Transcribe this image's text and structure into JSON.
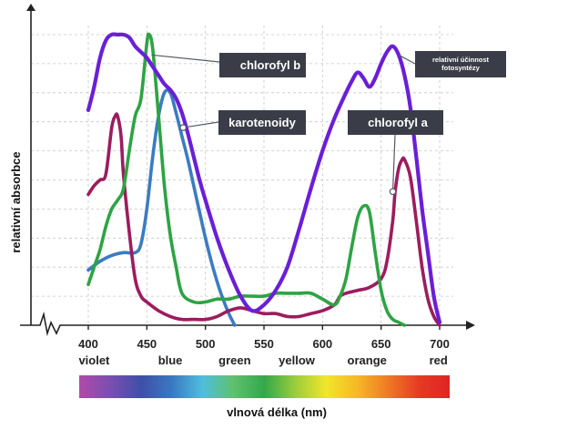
{
  "chart_data": {
    "type": "line",
    "title": "",
    "xlabel": "vlnová délka (nm)",
    "ylabel": "relativní absorbce",
    "xlim": [
      400,
      700
    ],
    "ylim": [
      0,
      1
    ],
    "grid": true,
    "ticks": [
      400,
      450,
      500,
      550,
      600,
      650,
      700
    ],
    "tick_labels": [
      "400",
      "450",
      "500",
      "550",
      "600",
      "650",
      "700"
    ],
    "color_bands": [
      {
        "label": "violet",
        "x": 405
      },
      {
        "label": "blue",
        "x": 470
      },
      {
        "label": "green",
        "x": 525
      },
      {
        "label": "yellow",
        "x": 578
      },
      {
        "label": "orange",
        "x": 638
      },
      {
        "label": "red",
        "x": 699
      }
    ],
    "spectrum_stops": [
      "#b14aa8",
      "#7a4fb0",
      "#3f4fa8",
      "#3a78c2",
      "#4fbfdc",
      "#5fc06e",
      "#33a84a",
      "#9ccd3b",
      "#f1e62a",
      "#f5b926",
      "#ef7a24",
      "#e53b25",
      "#e02424"
    ],
    "series": [
      {
        "name": "relativní účinnost fotosyntézy",
        "key": "effectiveness",
        "color": "#6a1fd6",
        "x": [
          400,
          405,
          410,
          415,
          420,
          425,
          430,
          435,
          440,
          445,
          450,
          455,
          460,
          465,
          470,
          475,
          480,
          485,
          490,
          495,
          500,
          510,
          520,
          530,
          540,
          550,
          560,
          570,
          580,
          590,
          600,
          610,
          620,
          625,
          630,
          635,
          640,
          645,
          650,
          655,
          660,
          665,
          670,
          675,
          680,
          685,
          690,
          695,
          700
        ],
        "y": [
          0.74,
          0.82,
          0.92,
          0.98,
          1.0,
          1.0,
          1.0,
          0.99,
          0.96,
          0.94,
          0.92,
          0.89,
          0.86,
          0.83,
          0.81,
          0.78,
          0.73,
          0.66,
          0.58,
          0.5,
          0.43,
          0.3,
          0.19,
          0.1,
          0.05,
          0.07,
          0.12,
          0.2,
          0.33,
          0.47,
          0.6,
          0.71,
          0.8,
          0.84,
          0.87,
          0.85,
          0.82,
          0.85,
          0.9,
          0.94,
          0.96,
          0.93,
          0.86,
          0.75,
          0.58,
          0.4,
          0.25,
          0.1,
          0.01
        ]
      },
      {
        "name": "chlorofyl b",
        "key": "chl_b",
        "color": "#2ea344",
        "x": [
          400,
          405,
          410,
          415,
          420,
          425,
          430,
          435,
          440,
          445,
          450,
          452,
          455,
          460,
          465,
          470,
          475,
          480,
          490,
          500,
          510,
          520,
          530,
          540,
          550,
          560,
          570,
          580,
          590,
          600,
          610,
          615,
          620,
          625,
          630,
          635,
          640,
          645,
          650,
          655,
          660,
          665,
          670
        ],
        "y": [
          0.14,
          0.2,
          0.26,
          0.34,
          0.4,
          0.43,
          0.47,
          0.6,
          0.72,
          0.78,
          0.97,
          1.0,
          0.95,
          0.72,
          0.48,
          0.31,
          0.2,
          0.11,
          0.08,
          0.08,
          0.09,
          0.09,
          0.1,
          0.1,
          0.1,
          0.11,
          0.11,
          0.11,
          0.11,
          0.09,
          0.07,
          0.1,
          0.16,
          0.27,
          0.37,
          0.41,
          0.39,
          0.25,
          0.12,
          0.05,
          0.02,
          0.01,
          0.0
        ]
      },
      {
        "name": "karotenoidy",
        "key": "carotenoids",
        "color": "#3a7cc2",
        "x": [
          400,
          410,
          420,
          430,
          440,
          445,
          450,
          455,
          460,
          465,
          470,
          475,
          480,
          485,
          490,
          495,
          500,
          505,
          510,
          515,
          520,
          525
        ],
        "y": [
          0.19,
          0.22,
          0.24,
          0.25,
          0.25,
          0.28,
          0.4,
          0.58,
          0.72,
          0.8,
          0.8,
          0.73,
          0.65,
          0.57,
          0.48,
          0.39,
          0.3,
          0.22,
          0.15,
          0.09,
          0.04,
          0.0
        ]
      },
      {
        "name": "chlorofyl a",
        "key": "chl_a",
        "color": "#9c1c5e",
        "x": [
          400,
          405,
          410,
          415,
          420,
          423,
          425,
          428,
          430,
          435,
          440,
          445,
          450,
          460,
          470,
          480,
          490,
          500,
          510,
          520,
          530,
          540,
          550,
          560,
          570,
          580,
          590,
          600,
          610,
          615,
          620,
          630,
          640,
          650,
          655,
          660,
          662,
          665,
          668,
          670,
          675,
          680,
          685,
          690,
          695,
          700
        ],
        "y": [
          0.45,
          0.48,
          0.5,
          0.52,
          0.68,
          0.72,
          0.72,
          0.65,
          0.52,
          0.32,
          0.16,
          0.1,
          0.08,
          0.05,
          0.03,
          0.02,
          0.02,
          0.02,
          0.03,
          0.05,
          0.06,
          0.05,
          0.04,
          0.04,
          0.03,
          0.03,
          0.04,
          0.05,
          0.07,
          0.1,
          0.11,
          0.12,
          0.13,
          0.16,
          0.22,
          0.36,
          0.46,
          0.54,
          0.57,
          0.57,
          0.51,
          0.36,
          0.2,
          0.09,
          0.03,
          0.0
        ]
      }
    ],
    "callouts": [
      {
        "key": "chl_b",
        "text": "chlorofyl b",
        "anchor_x": 454,
        "anchor_y": 0.93
      },
      {
        "key": "carotenoids",
        "text": "karotenoidy",
        "anchor_x": 481,
        "anchor_y": 0.68
      },
      {
        "key": "chl_a",
        "text": "chlorofyl a",
        "anchor_x": 660,
        "anchor_y": 0.46
      },
      {
        "key": "effectiveness",
        "text_lines": [
          "relativní účinnost",
          "fotosyntézy"
        ],
        "anchor_x": 665,
        "anchor_y": 0.93
      }
    ],
    "colors": {
      "callout_bg": "#3a3d48",
      "grid": "#c7c7c7",
      "axis": "#222222"
    }
  }
}
